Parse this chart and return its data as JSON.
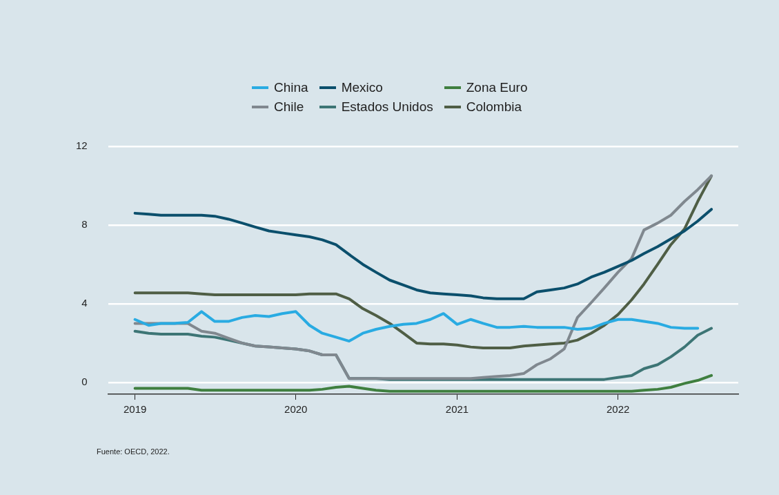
{
  "chart_data": {
    "type": "line",
    "legend": "top",
    "grid": "y",
    "marker": "none",
    "line_style": "solid",
    "annotations": [
      "Fuente: OECD, 2022."
    ],
    "x": [
      "2019-01",
      "2019-02",
      "2019-03",
      "2019-04",
      "2019-05",
      "2019-06",
      "2019-07",
      "2019-08",
      "2019-09",
      "2019-10",
      "2019-11",
      "2019-12",
      "2020-01",
      "2020-02",
      "2020-03",
      "2020-04",
      "2020-05",
      "2020-06",
      "2020-07",
      "2020-08",
      "2020-09",
      "2020-10",
      "2020-11",
      "2020-12",
      "2021-01",
      "2021-02",
      "2021-03",
      "2021-04",
      "2021-05",
      "2021-06",
      "2021-07",
      "2021-08",
      "2021-09",
      "2021-10",
      "2021-11",
      "2021-12",
      "2022-01",
      "2022-02",
      "2022-03",
      "2022-04",
      "2022-05",
      "2022-06",
      "2022-07",
      "2022-08"
    ],
    "xlim": [
      "2018-11",
      "2022-10"
    ],
    "xticks": [
      "2019",
      "2020",
      "2021",
      "2022"
    ],
    "ylim": [
      -0.6,
      12
    ],
    "yticks": [
      0,
      4,
      8,
      12
    ],
    "series": [
      {
        "name": "China",
        "color": "#29abe2",
        "values": [
          3.2,
          2.9,
          3.0,
          3.0,
          3.05,
          3.6,
          3.1,
          3.1,
          3.3,
          3.4,
          3.35,
          3.5,
          3.6,
          2.9,
          2.5,
          2.3,
          2.1,
          2.5,
          2.7,
          2.85,
          2.95,
          3.0,
          3.2,
          3.5,
          2.95,
          3.2,
          3.0,
          2.8,
          2.8,
          2.85,
          2.8,
          2.8,
          2.8,
          2.7,
          2.75,
          3.0,
          3.2,
          3.2,
          3.1,
          3.0,
          2.8,
          2.75,
          2.75,
          null
        ]
      },
      {
        "name": "Mexico",
        "color": "#0b4f6c",
        "values": [
          8.6,
          8.55,
          8.5,
          8.5,
          8.5,
          8.5,
          8.45,
          8.3,
          8.1,
          7.9,
          7.7,
          7.6,
          7.5,
          7.4,
          7.25,
          7.0,
          6.5,
          6.0,
          5.6,
          5.2,
          4.95,
          4.7,
          4.55,
          4.5,
          4.45,
          4.4,
          4.3,
          4.25,
          4.25,
          4.25,
          4.6,
          4.7,
          4.8,
          5.0,
          5.35,
          5.6,
          5.9,
          6.2,
          6.55,
          6.9,
          7.3,
          7.7,
          8.2,
          8.8
        ]
      },
      {
        "name": "Zona Euro",
        "color": "#3f7f3f",
        "values": [
          -0.3,
          -0.3,
          -0.3,
          -0.3,
          -0.3,
          -0.4,
          -0.4,
          -0.4,
          -0.4,
          -0.4,
          -0.4,
          -0.4,
          -0.4,
          -0.4,
          -0.35,
          -0.25,
          -0.2,
          -0.3,
          -0.4,
          -0.45,
          -0.45,
          -0.45,
          -0.45,
          -0.45,
          -0.45,
          -0.45,
          -0.45,
          -0.45,
          -0.45,
          -0.45,
          -0.45,
          -0.45,
          -0.45,
          -0.45,
          -0.45,
          -0.45,
          -0.45,
          -0.45,
          -0.4,
          -0.35,
          -0.25,
          -0.05,
          0.1,
          0.35
        ]
      },
      {
        "name": "Chile",
        "color": "#80888f",
        "values": [
          3.0,
          3.0,
          3.0,
          3.0,
          3.0,
          2.6,
          2.5,
          2.25,
          2.0,
          1.85,
          1.8,
          1.75,
          1.7,
          1.6,
          1.4,
          1.4,
          0.2,
          0.2,
          0.2,
          0.2,
          0.2,
          0.2,
          0.2,
          0.2,
          0.2,
          0.2,
          0.25,
          0.3,
          0.35,
          0.45,
          0.9,
          1.2,
          1.7,
          3.3,
          4.05,
          4.8,
          5.6,
          6.3,
          7.75,
          8.1,
          8.5,
          9.2,
          9.8,
          10.5
        ]
      },
      {
        "name": "Estados Unidos",
        "color": "#3d7575",
        "values": [
          2.6,
          2.5,
          2.45,
          2.45,
          2.45,
          2.35,
          2.3,
          2.15,
          2.0,
          1.85,
          1.8,
          1.75,
          1.7,
          1.6,
          1.4,
          1.4,
          0.2,
          0.2,
          0.2,
          0.15,
          0.15,
          0.15,
          0.15,
          0.15,
          0.15,
          0.15,
          0.15,
          0.15,
          0.15,
          0.15,
          0.15,
          0.15,
          0.15,
          0.15,
          0.15,
          0.15,
          0.25,
          0.35,
          0.7,
          0.9,
          1.3,
          1.8,
          2.4,
          2.75
        ]
      },
      {
        "name": "Colombia",
        "color": "#4f5e45",
        "values": [
          4.55,
          4.55,
          4.55,
          4.55,
          4.55,
          4.5,
          4.45,
          4.45,
          4.45,
          4.45,
          4.45,
          4.45,
          4.45,
          4.5,
          4.5,
          4.5,
          4.25,
          3.75,
          3.4,
          3.0,
          2.5,
          2.0,
          1.95,
          1.95,
          1.9,
          1.8,
          1.75,
          1.75,
          1.75,
          1.85,
          1.9,
          1.95,
          2.0,
          2.15,
          2.5,
          2.9,
          3.45,
          4.2,
          5.0,
          6.0,
          7.0,
          7.8,
          9.2,
          10.5
        ]
      }
    ]
  }
}
